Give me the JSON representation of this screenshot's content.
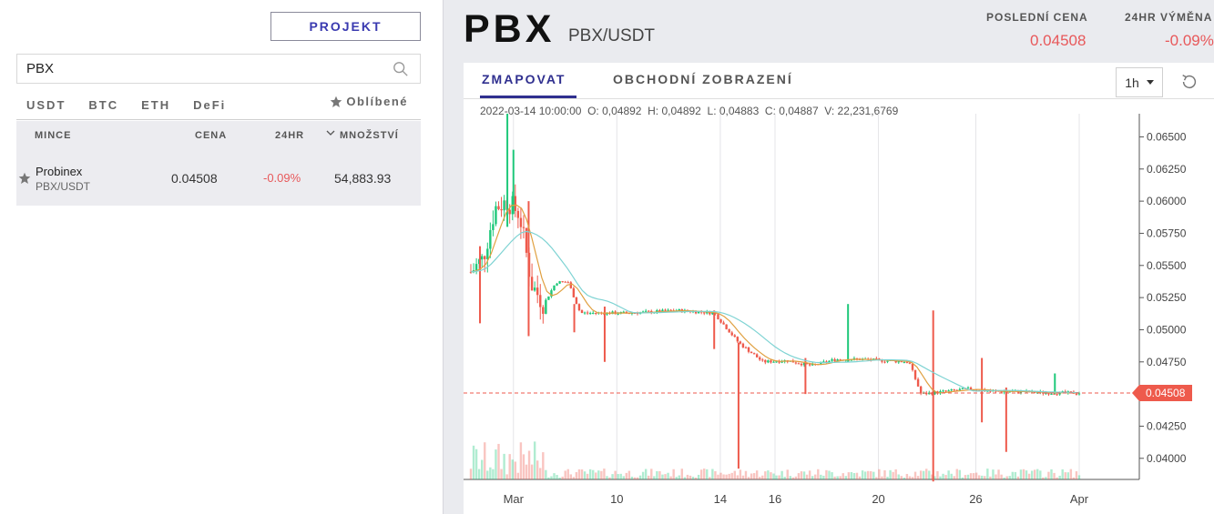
{
  "left": {
    "project_button": "PROJEKT",
    "search": {
      "value": "PBX",
      "icon": "search-icon"
    },
    "market_tabs": [
      "USDT",
      "BTC",
      "ETH",
      "DeFi"
    ],
    "favorites_tab": "Oblíbené",
    "table": {
      "headers": {
        "coin": "MINCE",
        "price": "CENA",
        "change": "24HR",
        "sort_icon": "chevron-down-icon",
        "quantity": "MNOŽSTVÍ"
      },
      "rows": [
        {
          "name": "Probinex",
          "pair": "PBX/USDT",
          "price": "0.04508",
          "change": "-0.09%",
          "quantity": "54,883.93"
        }
      ]
    }
  },
  "header": {
    "symbol": "PBX",
    "pair": "PBX/USDT",
    "last_price_label": "POSLEDNÍ CENA",
    "last_price": "0.04508",
    "change_label": "24HR VÝMĚNA",
    "change": "-0.09%"
  },
  "chart_tabs": {
    "chart": "ZMAPOVAT",
    "trade_view": "OBCHODNÍ ZOBRAZENÍ"
  },
  "interval": "1h",
  "ohlc_line": "2022-03-14 10:00:00  O: 0,04892  H: 0,04892  L: 0,04883  C: 0,04887  V: 22,231,6769",
  "colors": {
    "up": "#1ec87a",
    "down": "#ee5a4c",
    "accent": "#2f2f8f",
    "ma_fast": "#e0a040",
    "ma_slow": "#7ed3d3"
  },
  "chart_data": {
    "type": "candlestick",
    "ylim": [
      0.0385,
      0.0668
    ],
    "y_ticks": [
      "0.06500",
      "0.06250",
      "0.06000",
      "0.05750",
      "0.05500",
      "0.05250",
      "0.05000",
      "0.04750",
      "0.04500",
      "0.04250",
      "0.04000"
    ],
    "x_ticks": [
      "Mar",
      "10",
      "14",
      "16",
      "20",
      "26",
      "Apr"
    ],
    "last_price_marker": "0.04508",
    "close_path": [
      {
        "t": 0,
        "v": 0.0545
      },
      {
        "t": 0.02,
        "v": 0.0555
      },
      {
        "t": 0.04,
        "v": 0.0595
      },
      {
        "t": 0.06,
        "v": 0.06
      },
      {
        "t": 0.08,
        "v": 0.059
      },
      {
        "t": 0.1,
        "v": 0.0535
      },
      {
        "t": 0.12,
        "v": 0.052
      },
      {
        "t": 0.14,
        "v": 0.0537
      },
      {
        "t": 0.16,
        "v": 0.0537
      },
      {
        "t": 0.18,
        "v": 0.0513
      },
      {
        "t": 0.22,
        "v": 0.0513
      },
      {
        "t": 0.26,
        "v": 0.0513
      },
      {
        "t": 0.3,
        "v": 0.0514
      },
      {
        "t": 0.34,
        "v": 0.0515
      },
      {
        "t": 0.4,
        "v": 0.0513
      },
      {
        "t": 0.44,
        "v": 0.049
      },
      {
        "t": 0.48,
        "v": 0.0475
      },
      {
        "t": 0.52,
        "v": 0.0476
      },
      {
        "t": 0.56,
        "v": 0.0472
      },
      {
        "t": 0.6,
        "v": 0.0477
      },
      {
        "t": 0.64,
        "v": 0.0477
      },
      {
        "t": 0.68,
        "v": 0.0476
      },
      {
        "t": 0.72,
        "v": 0.0475
      },
      {
        "t": 0.74,
        "v": 0.045
      },
      {
        "t": 0.78,
        "v": 0.0452
      },
      {
        "t": 0.82,
        "v": 0.0454
      },
      {
        "t": 0.86,
        "v": 0.0452
      },
      {
        "t": 0.9,
        "v": 0.0452
      },
      {
        "t": 0.94,
        "v": 0.0451
      },
      {
        "t": 1.0,
        "v": 0.04508
      }
    ],
    "spikes": [
      {
        "t": 0.015,
        "hi": 0.0565,
        "lo": 0.0505
      },
      {
        "t": 0.06,
        "hi": 0.0668,
        "lo": 0.058
      },
      {
        "t": 0.07,
        "hi": 0.064,
        "lo": 0.059
      },
      {
        "t": 0.095,
        "hi": 0.06,
        "lo": 0.0495
      },
      {
        "t": 0.17,
        "hi": 0.052,
        "lo": 0.0498
      },
      {
        "t": 0.22,
        "hi": 0.0518,
        "lo": 0.0475
      },
      {
        "t": 0.4,
        "hi": 0.0515,
        "lo": 0.0485
      },
      {
        "t": 0.44,
        "hi": 0.049,
        "lo": 0.0392
      },
      {
        "t": 0.55,
        "hi": 0.0478,
        "lo": 0.045
      },
      {
        "t": 0.62,
        "hi": 0.052,
        "lo": 0.0475
      },
      {
        "t": 0.76,
        "hi": 0.0515,
        "lo": 0.0382
      },
      {
        "t": 0.84,
        "hi": 0.0478,
        "lo": 0.0428
      },
      {
        "t": 0.88,
        "hi": 0.0455,
        "lo": 0.0405
      },
      {
        "t": 0.96,
        "hi": 0.0466,
        "lo": 0.045
      }
    ]
  }
}
